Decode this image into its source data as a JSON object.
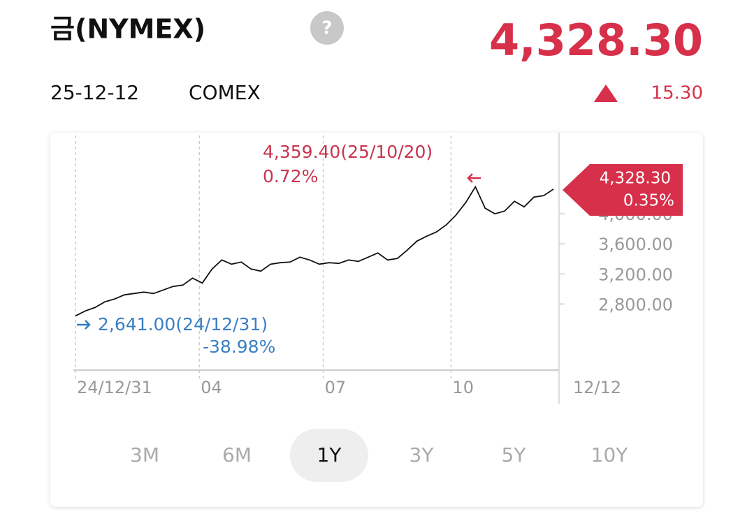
{
  "header": {
    "title": "금(NYMEX)",
    "help": "?",
    "price": "4,328.30",
    "date": "25-12-12",
    "exchange": "COMEX",
    "change": "15.30"
  },
  "chart_data": {
    "type": "line",
    "color": "#111111",
    "values": [
      2641.0,
      2707,
      2753,
      2828,
      2865,
      2921,
      2940,
      2958,
      2940,
      2986,
      3033,
      3051,
      3144,
      3079,
      3265,
      3386,
      3330,
      3358,
      3265,
      3237,
      3330,
      3349,
      3358,
      3423,
      3386,
      3330,
      3349,
      3340,
      3386,
      3367,
      3423,
      3479,
      3386,
      3405,
      3516,
      3637,
      3702,
      3758,
      3851,
      3981,
      4149,
      4359.4,
      4074,
      4000,
      4037,
      4167,
      4093,
      4223,
      4242,
      4328.3
    ],
    "xlim": [
      0,
      49
    ],
    "xticks": [
      {
        "value": 0,
        "label": "24/12/31"
      },
      {
        "value": 12.7,
        "label": "04"
      },
      {
        "value": 25.4,
        "label": "07"
      },
      {
        "value": 38.5,
        "label": "10"
      },
      {
        "value": 49,
        "label": "12/12"
      }
    ],
    "ylim": [
      1920,
      5080
    ],
    "yticks": [
      {
        "value": 2800,
        "label": "2,800.00"
      },
      {
        "value": 3200,
        "label": "3,200.00"
      },
      {
        "value": 3600,
        "label": "3,600.00"
      },
      {
        "value": 4000,
        "label": "4,000.00"
      }
    ],
    "grid": true,
    "max_label": "4,359.40(25/10/20)",
    "max_change": "0.72%",
    "min_label": "2,641.00(24/12/31)",
    "min_change": "-38.98%",
    "last_value": "4,328.30",
    "last_change": "0.35%"
  },
  "ranges": {
    "options": [
      "3M",
      "6M",
      "1Y",
      "3Y",
      "5Y",
      "10Y"
    ],
    "selected": 2
  }
}
